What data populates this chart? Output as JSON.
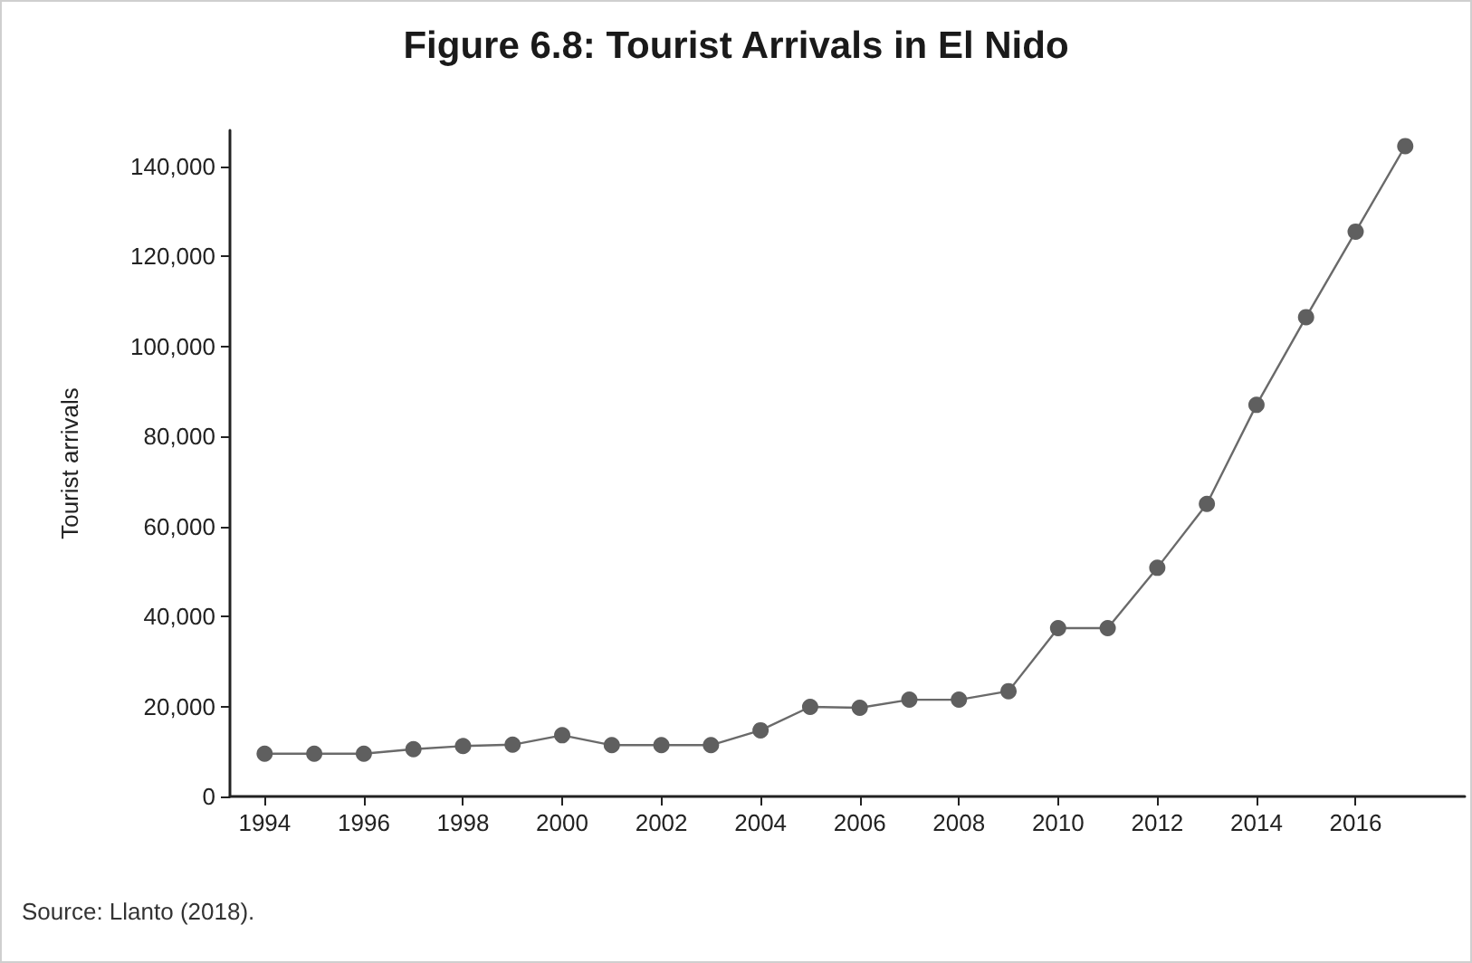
{
  "chart_data": {
    "type": "line",
    "title": "Figure 6.8: Tourist Arrivals in El Nido",
    "ylabel": "Tourist arrivals",
    "annotations": [
      "Source: Llanto (2018)."
    ],
    "x": [
      1994,
      1995,
      1996,
      1997,
      1998,
      1999,
      2000,
      2001,
      2002,
      2003,
      2004,
      2005,
      2006,
      2007,
      2008,
      2009,
      2010,
      2011,
      2012,
      2013,
      2014,
      2015,
      2016,
      2017
    ],
    "series": [
      {
        "color": "#5f5f5f",
        "values": [
          9500,
          9500,
          9500,
          10500,
          11200,
          11500,
          13600,
          11400,
          11400,
          11400,
          14700,
          19900,
          19700,
          21500,
          21500,
          23400,
          37400,
          37400,
          50800,
          65000,
          87000,
          106500,
          125500,
          144500
        ]
      }
    ],
    "xlim": [
      1993.3,
      2018.2
    ],
    "xticks": [
      1994,
      1996,
      1998,
      2000,
      2002,
      2004,
      2006,
      2008,
      2010,
      2012,
      2014,
      2016
    ],
    "ylim": [
      0,
      148000
    ],
    "yticks": [
      {
        "value": 0,
        "label": "0"
      },
      {
        "value": 20000,
        "label": "20,000"
      },
      {
        "value": 40000,
        "label": "40,000"
      },
      {
        "value": 60000,
        "label": "60,000"
      },
      {
        "value": 80000,
        "label": "80,000"
      },
      {
        "value": 100000,
        "label": "100,000"
      },
      {
        "value": 120000,
        "label": "120,000"
      },
      {
        "value": 140000,
        "label": "140,000"
      }
    ],
    "grid": false,
    "marker": "circle",
    "line_style": "solid"
  }
}
